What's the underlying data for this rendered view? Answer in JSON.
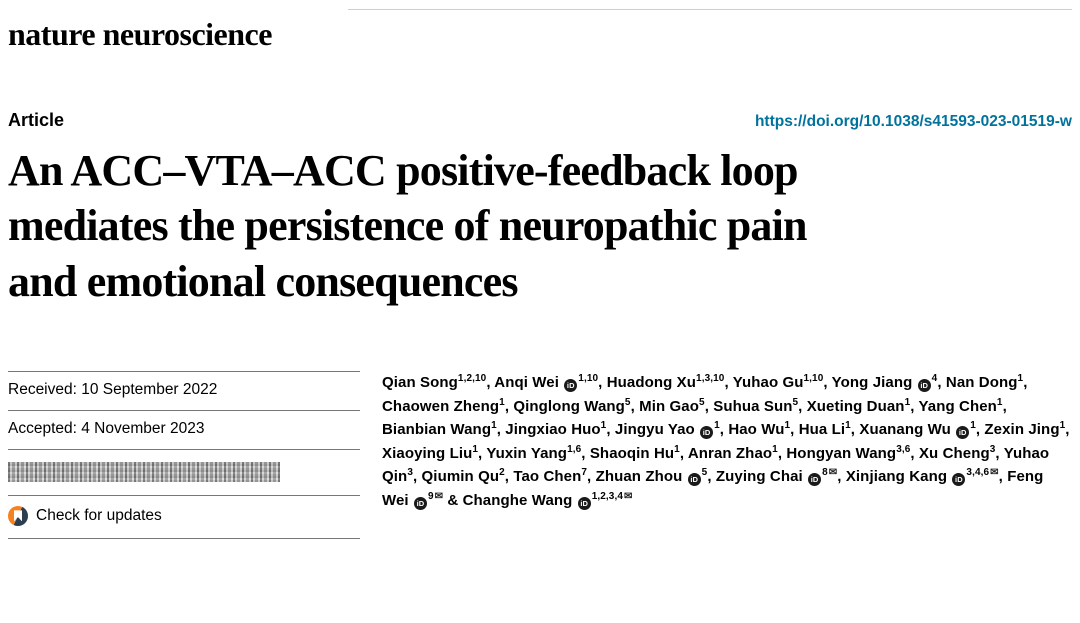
{
  "masthead": {
    "journal": "nature neuroscience"
  },
  "article": {
    "label": "Article",
    "doi": "https://doi.org/10.1038/s41593-023-01519-w",
    "title_lines": [
      "An ACC–VTA–ACC positive-feedback loop",
      "mediates the persistence of neuropathic pain",
      "and emotional consequences"
    ]
  },
  "dates": {
    "received": "Received: 10 September 2022",
    "accepted": "Accepted: 4 November 2023",
    "check_updates": "Check for updates"
  },
  "icons": {
    "orcid": "orcid-icon",
    "email": "email-icon",
    "crossmark": "crossmark-icon"
  },
  "colors": {
    "doi_link": "#00739d",
    "crossmark_orange": "#f58220",
    "crossmark_blue": "#2d3e50",
    "rule": "#777777"
  },
  "authors": [
    {
      "name": "Qian Song",
      "sup": "1,2,10"
    },
    {
      "name": "Anqi Wei",
      "orcid": true,
      "sup": "1,10"
    },
    {
      "name": "Huadong Xu",
      "sup": "1,3,10"
    },
    {
      "name": "Yuhao Gu",
      "sup": "1,10"
    },
    {
      "name": "Yong Jiang",
      "orcid": true,
      "sup": "4"
    },
    {
      "name": "Nan Dong",
      "sup": "1"
    },
    {
      "name": "Chaowen Zheng",
      "sup": "1"
    },
    {
      "name": "Qinglong Wang",
      "sup": "5"
    },
    {
      "name": "Min Gao",
      "sup": "5"
    },
    {
      "name": "Suhua Sun",
      "sup": "5"
    },
    {
      "name": "Xueting Duan",
      "sup": "1"
    },
    {
      "name": "Yang Chen",
      "sup": "1"
    },
    {
      "name": "Bianbian Wang",
      "sup": "1"
    },
    {
      "name": "Jingxiao Huo",
      "sup": "1"
    },
    {
      "name": "Jingyu Yao",
      "orcid": true,
      "sup": "1"
    },
    {
      "name": "Hao Wu",
      "sup": "1"
    },
    {
      "name": "Hua Li",
      "sup": "1"
    },
    {
      "name": "Xuanang Wu",
      "orcid": true,
      "sup": "1"
    },
    {
      "name": "Zexin Jing",
      "sup": "1"
    },
    {
      "name": "Xiaoying Liu",
      "sup": "1"
    },
    {
      "name": "Yuxin Yang",
      "sup": "1,6"
    },
    {
      "name": "Shaoqin Hu",
      "sup": "1"
    },
    {
      "name": "Anran Zhao",
      "sup": "1"
    },
    {
      "name": "Hongyan Wang",
      "sup": "3,6"
    },
    {
      "name": "Xu Cheng",
      "sup": "3"
    },
    {
      "name": "Yuhao Qin",
      "sup": "3"
    },
    {
      "name": "Qiumin Qu",
      "sup": "2"
    },
    {
      "name": "Tao Chen",
      "sup": "7"
    },
    {
      "name": "Zhuan Zhou",
      "orcid": true,
      "sup": "5"
    },
    {
      "name": "Zuying Chai",
      "orcid": true,
      "sup": "8",
      "mail": true
    },
    {
      "name": "Xinjiang Kang",
      "orcid": true,
      "sup": "3,4,6",
      "mail": true
    },
    {
      "name": "Feng Wei",
      "orcid": true,
      "sup": "9",
      "mail": true
    },
    {
      "name": "Changhe Wang",
      "orcid": true,
      "sup": "1,2,3,4",
      "mail": true
    }
  ]
}
